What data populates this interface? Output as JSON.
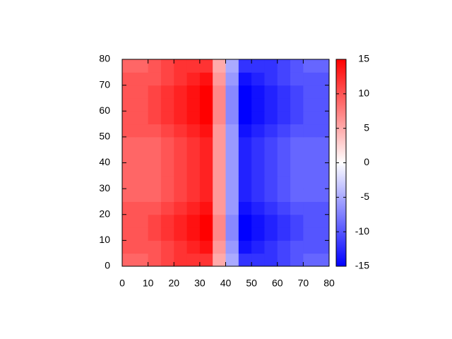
{
  "chart_data": {
    "type": "heatmap",
    "x": [
      2.5,
      7.5,
      12.5,
      17.5,
      22.5,
      27.5,
      32.5,
      37.5,
      42.5,
      47.5,
      52.5,
      57.5,
      62.5,
      67.5,
      72.5,
      77.5
    ],
    "y": [
      2.5,
      7.5,
      12.5,
      17.5,
      22.5,
      27.5,
      32.5,
      37.5,
      42.5,
      47.5,
      52.5,
      57.5,
      62.5,
      67.5,
      72.5,
      77.5
    ],
    "values": [
      [
        9,
        9,
        10,
        11,
        12,
        12,
        12,
        5,
        -5,
        -12,
        -12,
        -12,
        -11,
        -10,
        -9,
        -9
      ],
      [
        10,
        10,
        10,
        11,
        12,
        13,
        14,
        6,
        -6,
        -14,
        -13,
        -12,
        -11,
        -10,
        -10,
        -10
      ],
      [
        10,
        10,
        11,
        12,
        13,
        14,
        15,
        7,
        -7,
        -15,
        -14,
        -13,
        -12,
        -11,
        -10,
        -10
      ],
      [
        10,
        10,
        11,
        12,
        13,
        14,
        15,
        7,
        -7,
        -15,
        -14,
        -13,
        -12,
        -11,
        -10,
        -10
      ],
      [
        10,
        10,
        10,
        11,
        12,
        13,
        14,
        6,
        -6,
        -14,
        -13,
        -12,
        -11,
        -10,
        -10,
        -10
      ],
      [
        9,
        9,
        9,
        10,
        11,
        12,
        13,
        6,
        -6,
        -13,
        -12,
        -11,
        -10,
        -9,
        -9,
        -9
      ],
      [
        9,
        9,
        9,
        10,
        11,
        12,
        13,
        6,
        -6,
        -13,
        -12,
        -11,
        -10,
        -9,
        -9,
        -9
      ],
      [
        9,
        9,
        9,
        10,
        11,
        12,
        13,
        6,
        -6,
        -13,
        -12,
        -11,
        -10,
        -9,
        -9,
        -9
      ],
      [
        9,
        9,
        9,
        10,
        11,
        12,
        13,
        6,
        -6,
        -13,
        -12,
        -11,
        -10,
        -9,
        -9,
        -9
      ],
      [
        9,
        9,
        9,
        10,
        11,
        12,
        13,
        6,
        -6,
        -13,
        -12,
        -11,
        -10,
        -9,
        -9,
        -9
      ],
      [
        10,
        10,
        10,
        11,
        12,
        13,
        14,
        6,
        -6,
        -14,
        -13,
        -12,
        -11,
        -10,
        -10,
        -10
      ],
      [
        10,
        10,
        11,
        12,
        13,
        14,
        15,
        7,
        -7,
        -15,
        -14,
        -13,
        -12,
        -11,
        -10,
        -10
      ],
      [
        10,
        10,
        11,
        12,
        13,
        14,
        15,
        7,
        -7,
        -15,
        -14,
        -13,
        -12,
        -11,
        -10,
        -10
      ],
      [
        10,
        10,
        11,
        12,
        13,
        14,
        15,
        7,
        -7,
        -15,
        -14,
        -13,
        -12,
        -11,
        -10,
        -10
      ],
      [
        10,
        10,
        10,
        11,
        12,
        13,
        14,
        6,
        -6,
        -14,
        -13,
        -12,
        -11,
        -10,
        -10,
        -10
      ],
      [
        9,
        9,
        10,
        11,
        12,
        12,
        12,
        5,
        -5,
        -12,
        -12,
        -12,
        -11,
        -10,
        -9,
        -9
      ]
    ],
    "xlim": [
      0,
      80
    ],
    "xticks": [
      0,
      10,
      20,
      30,
      40,
      50,
      60,
      70,
      80
    ],
    "ylim": [
      0,
      80
    ],
    "yticks": [
      0,
      10,
      20,
      30,
      40,
      50,
      60,
      70,
      80
    ],
    "zlim": [
      -15,
      15
    ],
    "zticks": [
      -15,
      -10,
      -5,
      0,
      5,
      10,
      15
    ],
    "colormap": [
      "#0000ff",
      "#ffffff",
      "#ff0000"
    ]
  }
}
